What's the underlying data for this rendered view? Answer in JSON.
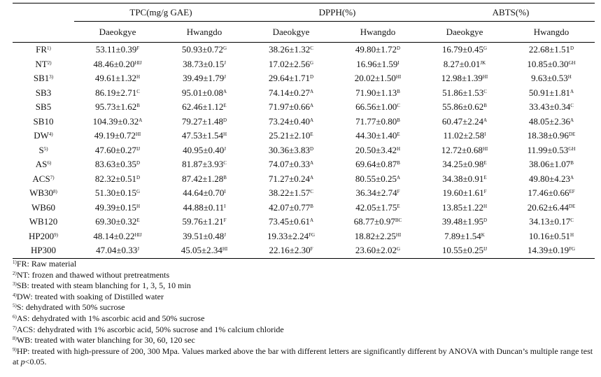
{
  "table": {
    "groups": [
      {
        "label": "TPC(mg/g GAE)"
      },
      {
        "label": "DPPH(%)"
      },
      {
        "label": "ABTS(%)"
      }
    ],
    "subheaders": [
      "Daeokgye",
      "Hwangdo",
      "Daeokgye",
      "Hwangdo",
      "Daeokgye",
      "Hwangdo"
    ],
    "rows": [
      {
        "label": "FR",
        "mark": "1)",
        "cells": [
          [
            "53.11±0.39",
            "F"
          ],
          [
            "50.93±0.72",
            "G"
          ],
          [
            "38.26±1.32",
            "C"
          ],
          [
            "49.80±1.72",
            "D"
          ],
          [
            "16.79±0.45",
            "G"
          ],
          [
            "22.68±1.51",
            "D"
          ]
        ]
      },
      {
        "label": "NT",
        "mark": "2)",
        "cells": [
          [
            "48.46±0.20",
            "HIJ"
          ],
          [
            "38.73±0.15",
            "J"
          ],
          [
            "17.02±2.56",
            "G"
          ],
          [
            "16.96±1.59",
            "I"
          ],
          [
            "8.27±0.01",
            "JK"
          ],
          [
            "10.85±0.30",
            "GH"
          ]
        ]
      },
      {
        "label": "SB1",
        "mark": "3)",
        "cells": [
          [
            "49.61±1.32",
            "H"
          ],
          [
            "39.49±1.79",
            "J"
          ],
          [
            "29.64±1.71",
            "D"
          ],
          [
            "20.02±1.50",
            "HI"
          ],
          [
            "12.98±1.39",
            "HI"
          ],
          [
            "9.63±0.53",
            "H"
          ]
        ]
      },
      {
        "label": "SB3",
        "mark": "",
        "cells": [
          [
            "86.19±2.71",
            "C"
          ],
          [
            "95.01±0.08",
            "A"
          ],
          [
            "74.14±0.27",
            "A"
          ],
          [
            "71.90±1.13",
            "B"
          ],
          [
            "51.86±1.53",
            "C"
          ],
          [
            "50.91±1.81",
            "A"
          ]
        ]
      },
      {
        "label": "SB5",
        "mark": "",
        "cells": [
          [
            "95.73±1.62",
            "B"
          ],
          [
            "62.46±1.12",
            "E"
          ],
          [
            "71.97±0.66",
            "A"
          ],
          [
            "66.56±1.00",
            "C"
          ],
          [
            "55.86±0.62",
            "B"
          ],
          [
            "33.43±0.34",
            "C"
          ]
        ]
      },
      {
        "label": "SB10",
        "mark": "",
        "cells": [
          [
            "104.39±0.32",
            "A"
          ],
          [
            "79.27±1.48",
            "D"
          ],
          [
            "73.24±0.40",
            "A"
          ],
          [
            "71.77±0.80",
            "B"
          ],
          [
            "60.47±2.24",
            "A"
          ],
          [
            "48.05±2.36",
            "A"
          ]
        ]
      },
      {
        "label": "DW",
        "mark": "4)",
        "cells": [
          [
            "49.19±0.72",
            "HI"
          ],
          [
            "47.53±1.54",
            "H"
          ],
          [
            "25.21±2.10",
            "E"
          ],
          [
            "44.30±1.40",
            "E"
          ],
          [
            "11.02±2.58",
            "I"
          ],
          [
            "18.38±0.96",
            "DE"
          ]
        ]
      },
      {
        "label": "S",
        "mark": "5)",
        "cells": [
          [
            "47.60±0.27",
            "IJ"
          ],
          [
            "40.95±0.40",
            "J"
          ],
          [
            "30.36±3.83",
            "D"
          ],
          [
            "20.50±3.42",
            "H"
          ],
          [
            "12.72±0.68",
            "HI"
          ],
          [
            "11.99±0.53",
            "GH"
          ]
        ]
      },
      {
        "label": "AS",
        "mark": "6)",
        "cells": [
          [
            "83.63±0.35",
            "D"
          ],
          [
            "81.87±3.93",
            "C"
          ],
          [
            "74.07±0.33",
            "A"
          ],
          [
            "69.64±0.87",
            "B"
          ],
          [
            "34.25±0.98",
            "E"
          ],
          [
            "38.06±1.07",
            "B"
          ]
        ]
      },
      {
        "label": "ACS",
        "mark": "7)",
        "cells": [
          [
            "82.32±0.51",
            "D"
          ],
          [
            "87.42±1.28",
            "B"
          ],
          [
            "71.27±0.24",
            "A"
          ],
          [
            "80.55±0.25",
            "A"
          ],
          [
            "34.38±0.91",
            "E"
          ],
          [
            "49.80±4.23",
            "A"
          ]
        ]
      },
      {
        "label": "WB30",
        "mark": "8)",
        "cells": [
          [
            "51.30±0.15",
            "G"
          ],
          [
            "44.64±0.70",
            "I"
          ],
          [
            "38.22±1.57",
            "C"
          ],
          [
            "36.34±2.74",
            "F"
          ],
          [
            "19.60±1.61",
            "F"
          ],
          [
            "17.46±0.66",
            "EF"
          ]
        ]
      },
      {
        "label": "WB60",
        "mark": "",
        "cells": [
          [
            "49.39±0.15",
            "H"
          ],
          [
            "44.88±0.11",
            "I"
          ],
          [
            "42.07±0.77",
            "B"
          ],
          [
            "42.05±1.75",
            "E"
          ],
          [
            "13.85±1.22",
            "H"
          ],
          [
            "20.62±6.44",
            "DE"
          ]
        ]
      },
      {
        "label": "WB120",
        "mark": "",
        "cells": [
          [
            "69.30±0.32",
            "E"
          ],
          [
            "59.76±1.21",
            "F"
          ],
          [
            "73.45±0.61",
            "A"
          ],
          [
            "68.77±0.97",
            "BC"
          ],
          [
            "39.48±1.95",
            "D"
          ],
          [
            "34.13±0.17",
            "C"
          ]
        ]
      },
      {
        "label": "HP200",
        "mark": "9)",
        "cells": [
          [
            "48.14±0.22",
            "HIJ"
          ],
          [
            "39.51±0.48",
            "J"
          ],
          [
            "19.33±2.24",
            "FG"
          ],
          [
            "18.82±2.25",
            "HI"
          ],
          [
            "7.89±1.54",
            "K"
          ],
          [
            "10.16±0.51",
            "H"
          ]
        ]
      },
      {
        "label": "HP300",
        "mark": "",
        "cells": [
          [
            "47.04±0.33",
            "J"
          ],
          [
            "45.05±2.34",
            "HI"
          ],
          [
            "22.16±2.30",
            "F"
          ],
          [
            "23.60±2.02",
            "G"
          ],
          [
            "10.55±0.25",
            "IJ"
          ],
          [
            "14.39±0.19",
            "FG"
          ]
        ]
      }
    ]
  },
  "footnotes": [
    {
      "mark": "1)",
      "text": "FR: Raw material"
    },
    {
      "mark": "2)",
      "text": "NT: frozen and thawed without pretreatments"
    },
    {
      "mark": "3)",
      "text": "SB: treated with steam blanching for 1, 3, 5, 10 min"
    },
    {
      "mark": "4)",
      "text": "DW: treated with soaking of Distilled water"
    },
    {
      "mark": "5)",
      "text": "S: dehydrated with 50% sucrose"
    },
    {
      "mark": "6)",
      "text": "AS: dehydrated with 1% ascorbic acid and 50% sucrose"
    },
    {
      "mark": "7)",
      "text": "ACS: dehydrated with 1% ascorbic acid, 50% sucrose and 1% calcium chloride"
    },
    {
      "mark": "8)",
      "text": "WB: treated with water blanching for 30, 60, 120 sec"
    },
    {
      "mark": "9)",
      "text": "HP: treated with high-pressure of 200, 300 Mpa. Values marked above the bar with different letters are significantly different by ANOVA with Duncan’s multiple range test at ",
      "italic": "p",
      "tail": "<0.05."
    }
  ]
}
